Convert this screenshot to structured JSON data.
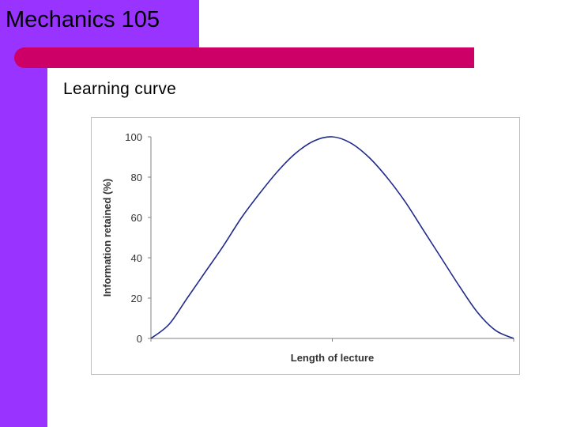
{
  "slide": {
    "title": "Mechanics 105",
    "subtitle": "Learning curve"
  },
  "colors": {
    "sidebar": "#9933ff",
    "accent_bar": "#cc0066",
    "curve": "#1f2a8c"
  },
  "chart_data": {
    "type": "line",
    "title": "",
    "xlabel": "Length of lecture",
    "ylabel": "Information retained (%)",
    "ylim": [
      0,
      100
    ],
    "yticks": [
      0,
      20,
      40,
      60,
      80,
      100
    ],
    "xlim": [
      0,
      1
    ],
    "grid": false,
    "legend": "none",
    "series": [
      {
        "x": [
          0.0,
          0.05,
          0.1,
          0.15,
          0.2,
          0.25,
          0.3,
          0.35,
          0.4,
          0.45,
          0.5,
          0.55,
          0.6,
          0.65,
          0.7,
          0.75,
          0.8,
          0.85,
          0.9,
          0.95,
          1.0
        ],
        "values": [
          0,
          7,
          20,
          33,
          46,
          60,
          72,
          83,
          92,
          98,
          100,
          97,
          90,
          80,
          68,
          54,
          40,
          26,
          13,
          4,
          0
        ]
      }
    ]
  }
}
